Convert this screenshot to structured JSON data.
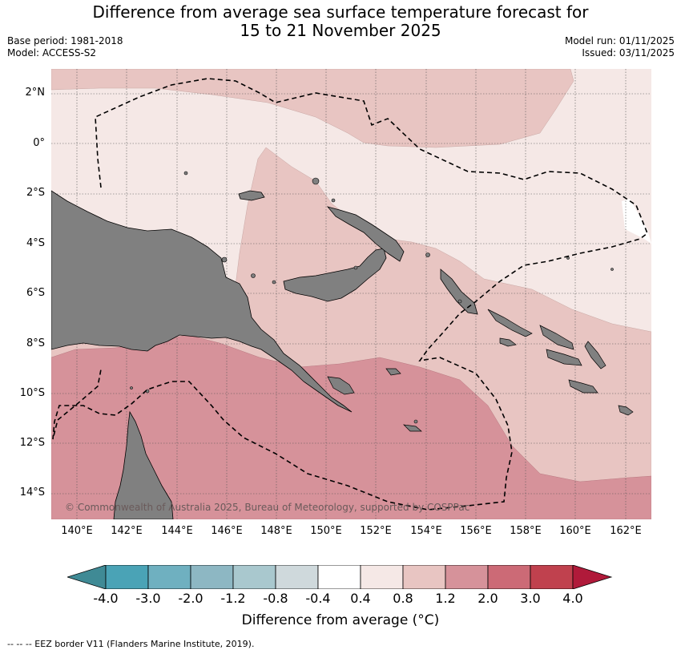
{
  "title_line1": "Difference from average sea surface temperature forecast for",
  "title_line2": "15 to 21 November 2025",
  "base_period": "Base period: 1981-2018",
  "model": "Model: ACCESS-S2",
  "model_run": "Model run: 01/11/2025",
  "issued": "Issued: 03/11/2025",
  "lat_labels": [
    "2°N",
    "0°",
    "2°S",
    "4°S",
    "6°S",
    "8°S",
    "10°S",
    "12°S",
    "14°S"
  ],
  "lon_labels": [
    "140°E",
    "142°E",
    "144°E",
    "146°E",
    "148°E",
    "150°E",
    "152°E",
    "154°E",
    "156°E",
    "158°E",
    "160°E",
    "162°E"
  ],
  "copyright": "© Commonwealth of Australia 2025, Bureau of Meteorology, supported by COSPPac",
  "colorbar": {
    "labels": [
      "-4.0",
      "-3.0",
      "-2.0",
      "-1.2",
      "-0.8",
      "-0.4",
      "0.4",
      "0.8",
      "1.2",
      "2.0",
      "3.0",
      "4.0"
    ],
    "colors": [
      "#3f8a95",
      "#4aa3b6",
      "#6fb0c0",
      "#8db7c3",
      "#a9c8ce",
      "#cfd9dc",
      "#ffffff",
      "#f5e8e6",
      "#e8c5c2",
      "#d6929a",
      "#cc6a76",
      "#c0414e",
      "#b01a3a"
    ],
    "title": "Difference from average (°C)"
  },
  "map_colors": {
    "band_0_4_0_8": "#f5e8e6",
    "band_0_8_1_2": "#e8c5c2",
    "band_1_2_2_0": "#d6929a",
    "land": "#808080"
  },
  "footnote": "--  --  -- EEZ border V11 (Flanders Marine Institute, 2019)."
}
